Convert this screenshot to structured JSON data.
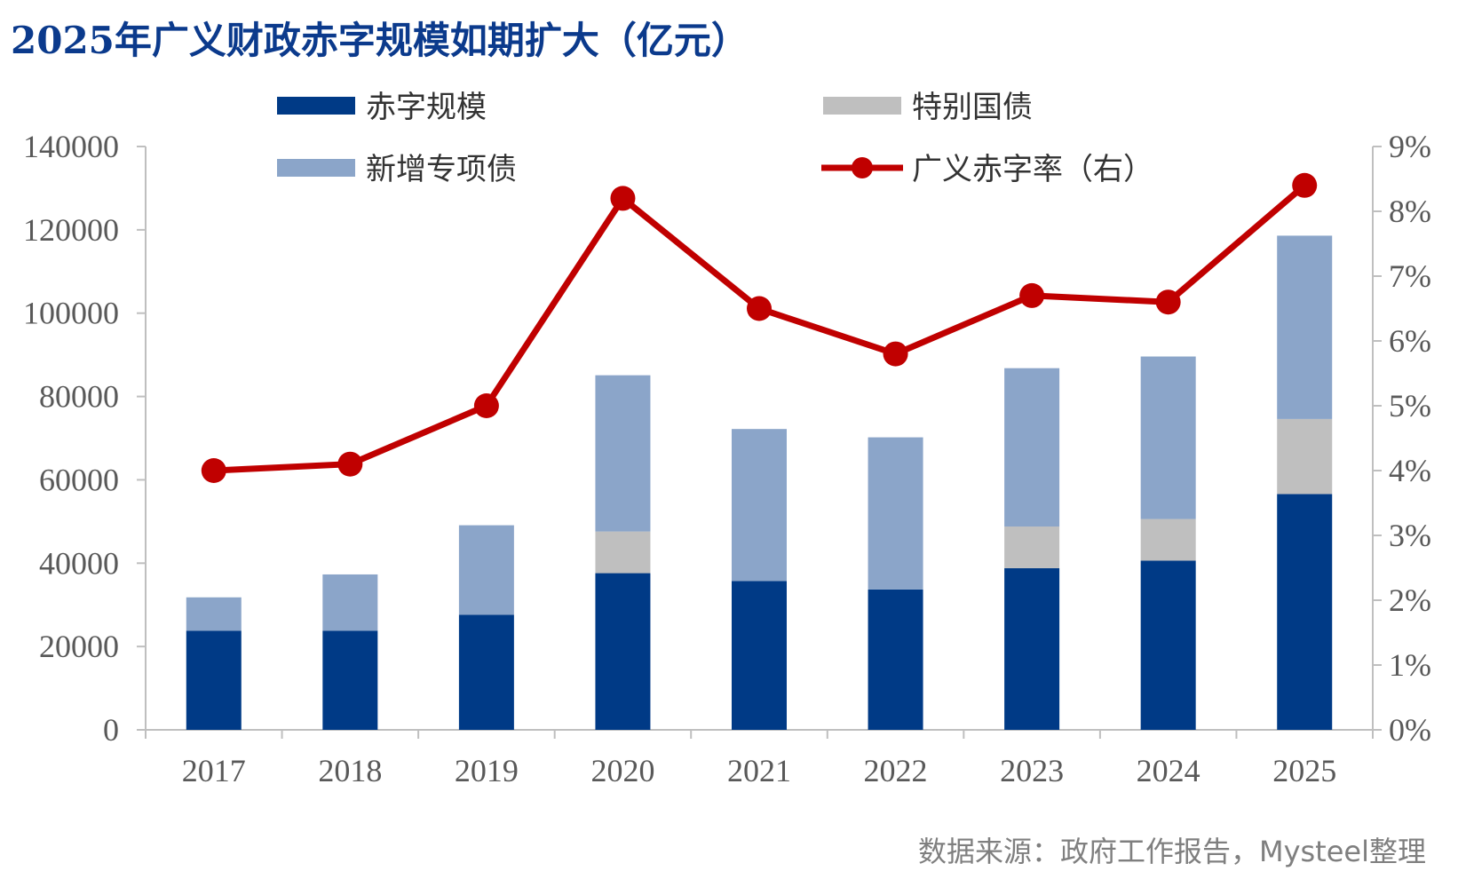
{
  "colors": {
    "deficit": "#003a86",
    "special_bond": "#bfbfbf",
    "special_purpose_bond": "#8ba5c9",
    "rate_line": "#c00000",
    "title": "#0b3a8c"
  },
  "chart_data": {
    "type": "bar",
    "title": "2025年广义财政赤字规模如期扩大（亿元）",
    "categories": [
      "2017",
      "2018",
      "2019",
      "2020",
      "2021",
      "2022",
      "2023",
      "2024",
      "2025"
    ],
    "series": [
      {
        "name": "赤字规模",
        "type": "bar",
        "stack": "total",
        "axis": "left",
        "values": [
          23800,
          23800,
          27600,
          37600,
          35700,
          33700,
          38800,
          40600,
          56600
        ]
      },
      {
        "name": "特别国债",
        "type": "bar",
        "stack": "total",
        "axis": "left",
        "values": [
          0,
          0,
          0,
          10000,
          0,
          0,
          10000,
          10000,
          18000
        ]
      },
      {
        "name": "新增专项债",
        "type": "bar",
        "stack": "total",
        "axis": "left",
        "values": [
          8000,
          13500,
          21500,
          37500,
          36500,
          36500,
          38000,
          39000,
          44000
        ]
      },
      {
        "name": "广义赤字率（右）",
        "type": "line",
        "axis": "right",
        "values": [
          4.0,
          4.1,
          5.0,
          8.2,
          6.5,
          5.8,
          6.7,
          6.6,
          8.4
        ]
      }
    ],
    "y_left": {
      "min": 0,
      "max": 140000,
      "step": 20000,
      "tick_labels": [
        "0",
        "20000",
        "40000",
        "60000",
        "80000",
        "100000",
        "120000",
        "140000"
      ]
    },
    "y_right": {
      "min": 0,
      "max": 9,
      "step": 1,
      "tick_labels": [
        "0%",
        "1%",
        "2%",
        "3%",
        "4%",
        "5%",
        "6%",
        "7%",
        "8%",
        "9%"
      ]
    },
    "grid": false,
    "legend_position": "top"
  },
  "legend": {
    "deficit": "赤字规模",
    "special_bond": "特别国债",
    "special_purpose_bond": "新增专项债",
    "rate": "广义赤字率（右）"
  },
  "source_note": "数据来源：政府工作报告，Mysteel整理"
}
